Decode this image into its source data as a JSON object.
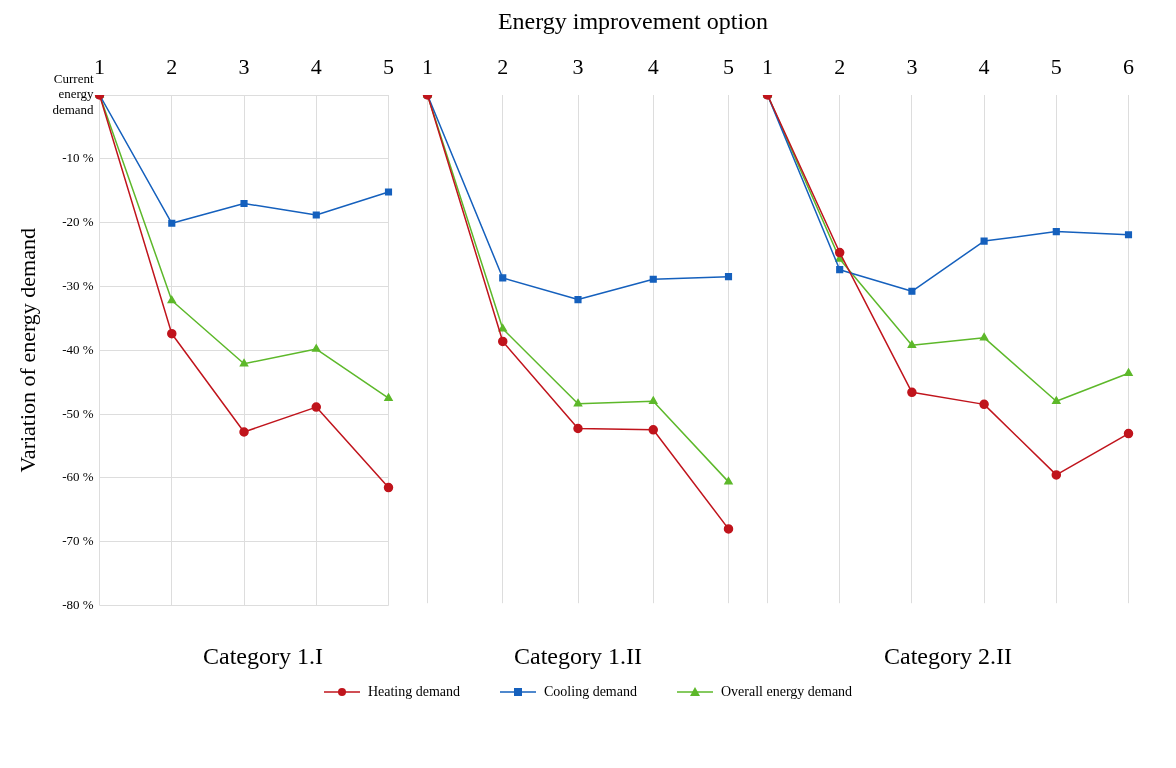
{
  "chart_data": [
    {
      "type": "line",
      "xlabel": "Category 1.I",
      "ylabel": "Variation of energy demand",
      "categories": [
        "1",
        "2",
        "3",
        "4",
        "5"
      ],
      "ylim": [
        -80,
        0
      ],
      "yticks": [
        {
          "value": 0,
          "label": "Current energy demand"
        },
        {
          "value": -10,
          "label": "-10 %"
        },
        {
          "value": -20,
          "label": "-20 %"
        },
        {
          "value": -30,
          "label": "-30 %"
        },
        {
          "value": -40,
          "label": "-40 %"
        },
        {
          "value": -50,
          "label": "-50 %"
        },
        {
          "value": -60,
          "label": "-60 %"
        },
        {
          "value": -70,
          "label": "-70 %"
        },
        {
          "value": -80,
          "label": "-80 %"
        }
      ],
      "grid": true,
      "legend": "bottom",
      "series": [
        {
          "name": "Heating demand",
          "color": "#c0141c",
          "marker": "circle",
          "values": [
            0,
            -37.4,
            -52.8,
            -48.9,
            -61.5
          ]
        },
        {
          "name": "Cooling demand",
          "color": "#1560bd",
          "marker": "square",
          "values": [
            0,
            -20.1,
            -17.0,
            -18.8,
            -15.2
          ]
        },
        {
          "name": "Overall energy demand",
          "color": "#5db82a",
          "marker": "triangle",
          "values": [
            0,
            -32.2,
            -42.1,
            -39.8,
            -47.5
          ]
        }
      ]
    },
    {
      "type": "line",
      "title": "Energy improvement option",
      "xlabel": "Category 1.II",
      "categories": [
        "1",
        "2",
        "3",
        "4",
        "5"
      ],
      "ylim": [
        -80,
        0
      ],
      "tick_labels": "x",
      "grid": true,
      "series": [
        {
          "color": "#c0141c",
          "marker": "circle",
          "values": [
            0,
            -38.8,
            -52.5,
            -52.7,
            -68.3
          ]
        },
        {
          "color": "#1560bd",
          "marker": "square",
          "values": [
            0,
            -28.8,
            -32.2,
            -29.0,
            -28.6
          ]
        },
        {
          "color": "#5db82a",
          "marker": "triangle",
          "values": [
            0,
            -36.8,
            -48.6,
            -48.2,
            -60.9
          ]
        }
      ]
    },
    {
      "type": "line",
      "xlabel": "Category 2.II",
      "categories": [
        "1",
        "2",
        "3",
        "4",
        "5",
        "6"
      ],
      "ylim": [
        -80,
        0
      ],
      "tick_labels": "x",
      "grid": true,
      "series": [
        {
          "color": "#c0141c",
          "marker": "circle",
          "values": [
            0,
            -24.8,
            -46.8,
            -48.7,
            -59.8,
            -53.3
          ]
        },
        {
          "color": "#1560bd",
          "marker": "square",
          "values": [
            0,
            -27.5,
            -30.9,
            -23.0,
            -21.5,
            -22.0
          ]
        },
        {
          "color": "#5db82a",
          "marker": "triangle",
          "values": [
            0,
            -25.8,
            -39.4,
            -38.2,
            -48.2,
            -43.8
          ]
        }
      ]
    }
  ]
}
